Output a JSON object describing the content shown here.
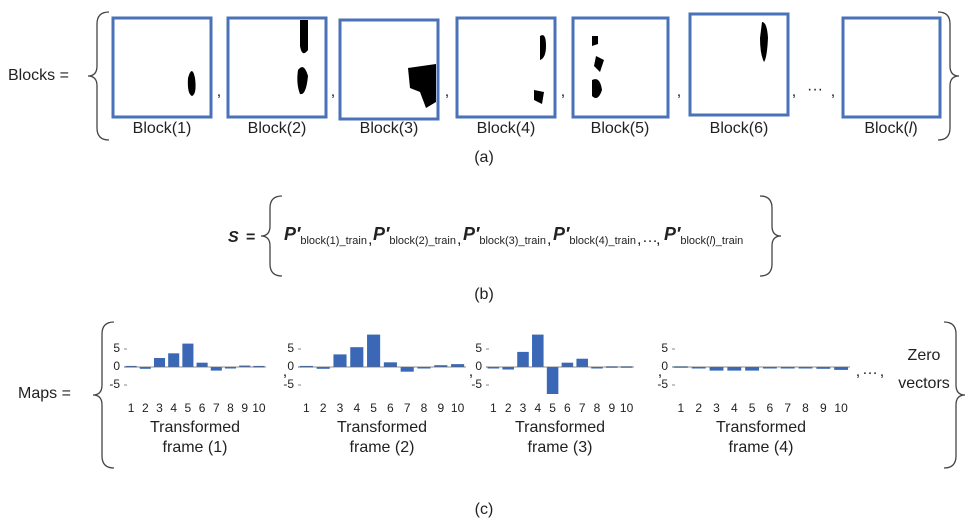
{
  "panel_a": {
    "label": "Blocks =",
    "blocks": [
      "Block(1)",
      "Block(2)",
      "Block(3)",
      "Block(4)",
      "Block(5)",
      "Block(6)"
    ],
    "last_block": {
      "prefix": "Block(",
      "index": "l",
      "suffix": ")"
    },
    "separator": ",",
    "ellipsis": "···",
    "caption": "(a)"
  },
  "panel_b": {
    "set": "S",
    "equals": "=",
    "symbol": "P′",
    "subscripts": [
      "block(1)_train",
      "block(2)_train",
      "block(3)_train",
      "block(4)_train"
    ],
    "last_subscript": {
      "prefix": "block(",
      "index": "l",
      "suffix": ")_train"
    },
    "separator": ",",
    "ellipsis": "…",
    "caption": "(b)"
  },
  "panel_c": {
    "label": "Maps =",
    "separator": ",",
    "ellipsis": "…",
    "tail": [
      "Zero",
      "vectors"
    ],
    "caption": "(c)"
  },
  "chart_data": [
    {
      "type": "bar",
      "xlabel": "Transformed frame (1)",
      "categories": [
        1,
        2,
        3,
        4,
        5,
        6,
        7,
        8,
        9,
        10
      ],
      "values": [
        0.3,
        -0.5,
        2.5,
        3.8,
        6.5,
        1.2,
        -1,
        0,
        0.4,
        0.3
      ],
      "color": "#3a68b6",
      "ylim": [
        -9,
        9
      ],
      "yticks": [
        -5,
        0,
        5
      ]
    },
    {
      "type": "bar",
      "xlabel": "Transformed frame (2)",
      "categories": [
        1,
        2,
        3,
        4,
        5,
        6,
        7,
        8,
        9,
        10
      ],
      "values": [
        0.3,
        -0.5,
        3.5,
        5.5,
        9,
        1.3,
        -1.3,
        0,
        0.5,
        0.8
      ],
      "color": "#3a68b6",
      "ylim": [
        -9,
        9
      ],
      "yticks": [
        -5,
        0,
        5
      ]
    },
    {
      "type": "bar",
      "xlabel": "Transformed frame (3)",
      "categories": [
        1,
        2,
        3,
        4,
        5,
        6,
        7,
        8,
        9,
        10
      ],
      "values": [
        0,
        -0.7,
        4.2,
        9,
        -7.5,
        1.2,
        2.3,
        0,
        0.2,
        0.2
      ],
      "color": "#3a68b6",
      "ylim": [
        -9,
        9
      ],
      "yticks": [
        -5,
        0,
        5
      ]
    },
    {
      "type": "bar",
      "xlabel": "Transformed frame (4)",
      "categories": [
        1,
        2,
        3,
        4,
        5,
        6,
        7,
        8,
        9,
        10
      ],
      "values": [
        0.2,
        -0.3,
        -1,
        -1,
        -1,
        0,
        0,
        -0.3,
        -0.5,
        -0.8
      ],
      "color": "#3a68b6",
      "ylim": [
        -9,
        9
      ],
      "yticks": [
        -5,
        0,
        5
      ]
    }
  ]
}
